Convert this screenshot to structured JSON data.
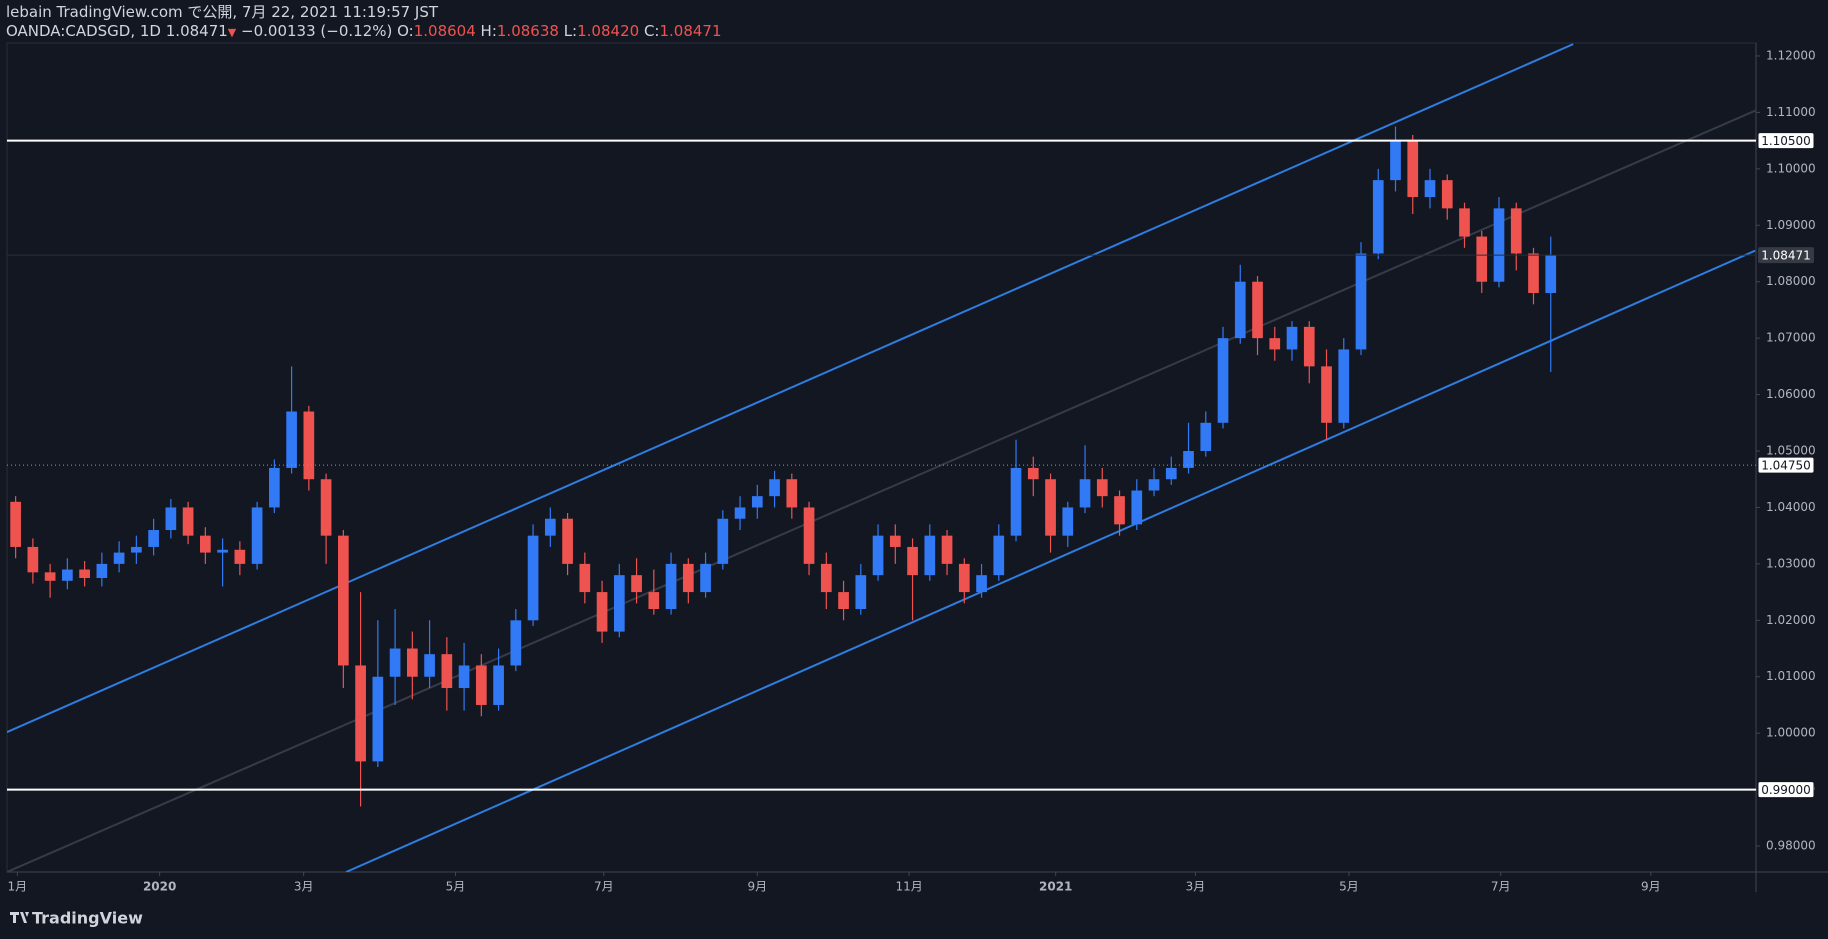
{
  "header": {
    "publisher": "lebain TradingView.com で公開, 7月 22, 2021 11:19:57 JST",
    "symbol": "OANDA:CADSGD, 1D",
    "last": "1.08471",
    "change_arrow": "▼",
    "change": "−0.00133 (−0.12%)",
    "ohlc": [
      {
        "label": "O:",
        "value": "1.08604"
      },
      {
        "label": "H:",
        "value": "1.08638"
      },
      {
        "label": "L:",
        "value": "1.08420"
      },
      {
        "label": "C:",
        "value": "1.08471"
      }
    ]
  },
  "chart_data": {
    "type": "candlestick",
    "up_color": "#3179f5",
    "down_color": "#ef5350",
    "x": [
      0.5,
      1.5,
      2.5,
      3.5,
      4.5,
      5.5,
      6.5,
      7.5,
      8.5,
      9.5,
      10.5,
      11.5,
      12.5,
      13.5,
      14.5,
      15.5,
      16.5,
      17.5,
      18.5,
      19.5,
      20.5,
      21.5,
      22.5,
      23.5,
      24.5,
      25.5,
      26.5,
      27.5,
      28.5,
      29.5,
      30.5,
      31.5,
      32.5,
      33.5,
      34.5,
      35.5,
      36.5,
      37.5,
      38.5,
      39.5,
      40.5,
      41.5,
      42.5,
      43.5,
      44.5,
      45.5,
      46.5,
      47.5,
      48.5,
      49.5,
      50.5,
      51.5,
      52.5,
      53.5,
      54.5,
      55.5,
      56.5,
      57.5,
      58.5,
      59.5,
      60.5,
      61.5,
      62.5,
      63.5,
      64.5,
      65.5,
      66.5,
      67.5,
      68.5,
      69.5,
      70.5,
      71.5,
      72.5,
      73.5,
      74.5,
      75.5,
      76.5,
      77.5,
      78.5,
      79.5,
      80.5,
      81.5,
      82.5,
      83.5,
      84.5,
      85.5,
      86.5,
      87.5,
      88.5,
      89.5
    ],
    "open": [
      1.041,
      1.033,
      1.0285,
      1.027,
      1.029,
      1.0275,
      1.03,
      1.032,
      1.033,
      1.036,
      1.04,
      1.035,
      1.032,
      1.0325,
      1.03,
      1.04,
      1.047,
      1.057,
      1.045,
      1.035,
      1.012,
      0.995,
      1.01,
      1.015,
      1.01,
      1.014,
      1.008,
      1.012,
      1.005,
      1.012,
      1.02,
      1.035,
      1.038,
      1.03,
      1.025,
      1.018,
      1.028,
      1.025,
      1.022,
      1.03,
      1.025,
      1.03,
      1.038,
      1.04,
      1.042,
      1.045,
      1.04,
      1.03,
      1.025,
      1.022,
      1.028,
      1.035,
      1.033,
      1.028,
      1.035,
      1.03,
      1.025,
      1.028,
      1.035,
      1.047,
      1.045,
      1.035,
      1.04,
      1.045,
      1.042,
      1.037,
      1.043,
      1.045,
      1.047,
      1.05,
      1.055,
      1.07,
      1.08,
      1.07,
      1.068,
      1.072,
      1.065,
      1.055,
      1.068,
      1.085,
      1.098,
      1.105,
      1.095,
      1.098,
      1.093,
      1.088,
      1.08,
      1.093,
      1.085,
      1.078
    ],
    "high": [
      1.042,
      1.0345,
      1.03,
      1.031,
      1.0305,
      1.032,
      1.034,
      1.035,
      1.038,
      1.0415,
      1.041,
      1.0365,
      1.0345,
      1.034,
      1.041,
      1.0485,
      1.065,
      1.058,
      1.046,
      1.036,
      1.025,
      1.02,
      1.022,
      1.018,
      1.02,
      1.017,
      1.016,
      1.014,
      1.015,
      1.022,
      1.037,
      1.04,
      1.039,
      1.032,
      1.027,
      1.03,
      1.031,
      1.029,
      1.032,
      1.031,
      1.032,
      1.0395,
      1.042,
      1.044,
      1.0465,
      1.046,
      1.041,
      1.032,
      1.027,
      1.03,
      1.037,
      1.037,
      1.0345,
      1.037,
      1.036,
      1.031,
      1.03,
      1.037,
      1.052,
      1.049,
      1.046,
      1.041,
      1.051,
      1.047,
      1.043,
      1.045,
      1.047,
      1.049,
      1.055,
      1.057,
      1.072,
      1.083,
      1.081,
      1.072,
      1.073,
      1.073,
      1.068,
      1.07,
      1.087,
      1.1,
      1.1075,
      1.106,
      1.1,
      1.099,
      1.094,
      1.089,
      1.095,
      1.094,
      1.086,
      1.088
    ],
    "low": [
      1.031,
      1.0265,
      1.024,
      1.0255,
      1.026,
      1.026,
      1.0285,
      1.03,
      1.0315,
      1.0345,
      1.0335,
      1.03,
      1.026,
      1.028,
      1.029,
      1.039,
      1.046,
      1.043,
      1.03,
      1.008,
      0.987,
      0.994,
      1.005,
      1.006,
      1.008,
      1.004,
      1.004,
      1.003,
      1.004,
      1.011,
      1.019,
      1.033,
      1.028,
      1.023,
      1.016,
      1.017,
      1.023,
      1.021,
      1.021,
      1.023,
      1.024,
      1.029,
      1.036,
      1.038,
      1.04,
      1.038,
      1.028,
      1.022,
      1.02,
      1.021,
      1.027,
      1.03,
      1.02,
      1.027,
      1.028,
      1.023,
      1.024,
      1.027,
      1.034,
      1.042,
      1.032,
      1.033,
      1.039,
      1.04,
      1.035,
      1.036,
      1.042,
      1.044,
      1.046,
      1.049,
      1.054,
      1.069,
      1.067,
      1.066,
      1.066,
      1.062,
      1.052,
      1.054,
      1.067,
      1.084,
      1.096,
      1.092,
      1.093,
      1.091,
      1.086,
      1.078,
      1.079,
      1.082,
      1.076,
      1.064
    ],
    "close": [
      1.033,
      1.0285,
      1.027,
      1.029,
      1.0275,
      1.03,
      1.032,
      1.033,
      1.036,
      1.04,
      1.035,
      1.032,
      1.0325,
      1.03,
      1.04,
      1.047,
      1.057,
      1.045,
      1.035,
      1.012,
      0.995,
      1.01,
      1.015,
      1.01,
      1.014,
      1.008,
      1.012,
      1.005,
      1.012,
      1.02,
      1.035,
      1.038,
      1.03,
      1.025,
      1.018,
      1.028,
      1.025,
      1.022,
      1.03,
      1.025,
      1.03,
      1.038,
      1.04,
      1.042,
      1.045,
      1.04,
      1.03,
      1.025,
      1.022,
      1.028,
      1.035,
      1.033,
      1.028,
      1.035,
      1.03,
      1.025,
      1.028,
      1.035,
      1.047,
      1.045,
      1.035,
      1.04,
      1.045,
      1.042,
      1.037,
      1.043,
      1.045,
      1.047,
      1.05,
      1.055,
      1.07,
      1.08,
      1.07,
      1.068,
      1.072,
      1.065,
      1.055,
      1.068,
      1.085,
      1.098,
      1.105,
      1.095,
      1.098,
      1.093,
      1.088,
      1.08,
      1.093,
      1.085,
      1.078,
      1.0847
    ],
    "xlim": [
      0,
      101.4
    ],
    "xticks": [
      {
        "value": 0.6,
        "label": "1月"
      },
      {
        "value": 8.85,
        "label": "2020"
      },
      {
        "value": 17.2,
        "label": "3月"
      },
      {
        "value": 26.0,
        "label": "5月"
      },
      {
        "value": 34.6,
        "label": "7月"
      },
      {
        "value": 43.5,
        "label": "9月"
      },
      {
        "value": 52.3,
        "label": "11月"
      },
      {
        "value": 60.8,
        "label": "2021"
      },
      {
        "value": 68.9,
        "label": "3月"
      },
      {
        "value": 77.8,
        "label": "5月"
      },
      {
        "value": 86.6,
        "label": "7月"
      },
      {
        "value": 95.3,
        "label": "9月"
      }
    ],
    "ylim": [
      0.9754,
      1.1223
    ],
    "yticks": [
      {
        "value": 0.98,
        "label": "0.98000"
      },
      {
        "value": 0.99,
        "label": "0.99000"
      },
      {
        "value": 1.0,
        "label": "1.00000"
      },
      {
        "value": 1.01,
        "label": "1.01000"
      },
      {
        "value": 1.02,
        "label": "1.02000"
      },
      {
        "value": 1.03,
        "label": "1.03000"
      },
      {
        "value": 1.04,
        "label": "1.04000"
      },
      {
        "value": 1.05,
        "label": "1.05000"
      },
      {
        "value": 1.06,
        "label": "1.06000"
      },
      {
        "value": 1.07,
        "label": "1.07000"
      },
      {
        "value": 1.08,
        "label": "1.08000"
      },
      {
        "value": 1.09,
        "label": "1.09000"
      },
      {
        "value": 1.1,
        "label": "1.10000"
      },
      {
        "value": 1.11,
        "label": "1.11000"
      },
      {
        "value": 1.12,
        "label": "1.12000"
      }
    ],
    "levels": [
      {
        "value": 1.105,
        "label": "1.10500",
        "color": "#ffffff",
        "style": "solid"
      },
      {
        "value": 0.99,
        "label": "0.99000",
        "color": "#ffffff",
        "style": "solid"
      },
      {
        "value": 1.0475,
        "label": "1.04750",
        "color": "#9598a1",
        "style": "dotted"
      }
    ],
    "last_price": {
      "value": 1.08471,
      "label": "1.08471"
    },
    "trend_lines": [
      {
        "color": "#2f7de1",
        "points": [
          [
            0,
            1.0002
          ],
          [
            90.8,
            1.1221
          ]
        ]
      },
      {
        "color": "#2f7de1",
        "points": [
          [
            19.66,
            0.9754
          ],
          [
            101.35,
            1.0855
          ]
        ]
      },
      {
        "color": "#363b4a",
        "points": [
          [
            0,
            0.9754
          ],
          [
            101.35,
            1.1103
          ]
        ]
      }
    ]
  },
  "footer": {
    "brand": "TradingView"
  }
}
